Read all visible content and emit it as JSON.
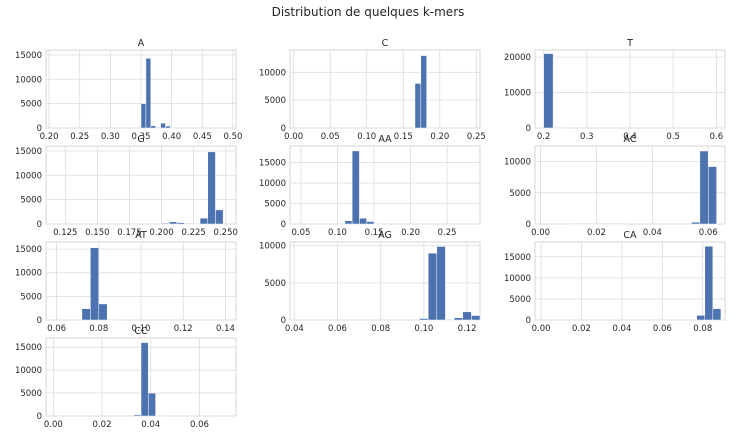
{
  "title": "Distribution de quelques k-mers",
  "colors": {
    "bar": "#4c72b0",
    "grid": "#dcdcdc",
    "background": "#ffffff"
  },
  "chart_data": [
    {
      "type": "bar",
      "title": "A",
      "x_ticks": [
        "0.20",
        "0.25",
        "0.30",
        "0.35",
        "0.40",
        "0.45",
        "0.50"
      ],
      "xlim": [
        0.195,
        0.505
      ],
      "y_ticks": [
        "0",
        "5000",
        "10000",
        "15000"
      ],
      "ylim": [
        0,
        16000
      ],
      "bins": [
        {
          "x0": 0.35,
          "x1": 0.358,
          "count": 5000
        },
        {
          "x0": 0.358,
          "x1": 0.366,
          "count": 14300
        },
        {
          "x0": 0.366,
          "x1": 0.374,
          "count": 450
        },
        {
          "x0": 0.374,
          "x1": 0.382,
          "count": 80
        },
        {
          "x0": 0.382,
          "x1": 0.39,
          "count": 1000
        },
        {
          "x0": 0.39,
          "x1": 0.398,
          "count": 400
        },
        {
          "x0": 0.398,
          "x1": 0.406,
          "count": 60
        }
      ]
    },
    {
      "type": "bar",
      "title": "C",
      "x_ticks": [
        "0.00",
        "0.05",
        "0.10",
        "0.15",
        "0.20",
        "0.25"
      ],
      "xlim": [
        -0.005,
        0.255
      ],
      "y_ticks": [
        "0",
        "5000",
        "10000"
      ],
      "ylim": [
        0,
        14000
      ],
      "bins": [
        {
          "x0": 0.166,
          "x1": 0.174,
          "count": 8000
        },
        {
          "x0": 0.174,
          "x1": 0.182,
          "count": 13000
        },
        {
          "x0": 0.182,
          "x1": 0.19,
          "count": 60
        }
      ]
    },
    {
      "type": "bar",
      "title": "T",
      "x_ticks": [
        "0.2",
        "0.3",
        "0.4",
        "0.5",
        "0.6"
      ],
      "xlim": [
        0.18,
        0.62
      ],
      "y_ticks": [
        "0",
        "10000",
        "20000"
      ],
      "ylim": [
        0,
        22000
      ],
      "bins": [
        {
          "x0": 0.2,
          "x1": 0.222,
          "count": 21000
        },
        {
          "x0": 0.222,
          "x1": 0.244,
          "count": 20
        }
      ]
    },
    {
      "type": "bar",
      "title": "G",
      "x_ticks": [
        "0.125",
        "0.150",
        "0.175",
        "0.200",
        "0.225",
        "0.250"
      ],
      "xlim": [
        0.11,
        0.258
      ],
      "y_ticks": [
        "0",
        "5000",
        "10000",
        "15000"
      ],
      "ylim": [
        0,
        16000
      ],
      "bins": [
        {
          "x0": 0.2,
          "x1": 0.206,
          "count": 180
        },
        {
          "x0": 0.206,
          "x1": 0.212,
          "count": 450
        },
        {
          "x0": 0.212,
          "x1": 0.218,
          "count": 280
        },
        {
          "x0": 0.218,
          "x1": 0.224,
          "count": 80
        },
        {
          "x0": 0.224,
          "x1": 0.23,
          "count": 60
        },
        {
          "x0": 0.23,
          "x1": 0.236,
          "count": 1200
        },
        {
          "x0": 0.236,
          "x1": 0.242,
          "count": 14800
        },
        {
          "x0": 0.242,
          "x1": 0.248,
          "count": 2900
        }
      ]
    },
    {
      "type": "bar",
      "title": "AA",
      "x_ticks": [
        "0.05",
        "0.10",
        "0.15",
        "0.20",
        "0.25"
      ],
      "xlim": [
        0.035,
        0.295
      ],
      "y_ticks": [
        "0",
        "5000",
        "10000",
        "15000"
      ],
      "ylim": [
        0,
        19000
      ],
      "bins": [
        {
          "x0": 0.11,
          "x1": 0.12,
          "count": 800
        },
        {
          "x0": 0.12,
          "x1": 0.13,
          "count": 17800
        },
        {
          "x0": 0.13,
          "x1": 0.14,
          "count": 1400
        },
        {
          "x0": 0.14,
          "x1": 0.15,
          "count": 600
        },
        {
          "x0": 0.15,
          "x1": 0.16,
          "count": 80
        }
      ]
    },
    {
      "type": "bar",
      "title": "AC",
      "x_ticks": [
        "0.00",
        "0.02",
        "0.04",
        "0.06"
      ],
      "xlim": [
        -0.002,
        0.066
      ],
      "y_ticks": [
        "0",
        "5000",
        "10000"
      ],
      "ylim": [
        0,
        12500
      ],
      "bins": [
        {
          "x0": 0.01,
          "x1": 0.03,
          "count": 40
        },
        {
          "x0": 0.054,
          "x1": 0.057,
          "count": 300
        },
        {
          "x0": 0.057,
          "x1": 0.06,
          "count": 11700
        },
        {
          "x0": 0.06,
          "x1": 0.063,
          "count": 9200
        }
      ]
    },
    {
      "type": "bar",
      "title": "AT",
      "x_ticks": [
        "0.06",
        "0.08",
        "0.10",
        "0.12",
        "0.14"
      ],
      "xlim": [
        0.055,
        0.145
      ],
      "y_ticks": [
        "0",
        "5000",
        "10000",
        "15000"
      ],
      "ylim": [
        0,
        16500
      ],
      "bins": [
        {
          "x0": 0.072,
          "x1": 0.076,
          "count": 2400
        },
        {
          "x0": 0.076,
          "x1": 0.08,
          "count": 15300
        },
        {
          "x0": 0.08,
          "x1": 0.084,
          "count": 3400
        },
        {
          "x0": 0.084,
          "x1": 0.088,
          "count": 60
        }
      ]
    },
    {
      "type": "bar",
      "title": "AG",
      "x_ticks": [
        "0.04",
        "0.06",
        "0.08",
        "0.10",
        "0.12"
      ],
      "xlim": [
        0.038,
        0.126
      ],
      "y_ticks": [
        "0",
        "5000",
        "10000"
      ],
      "ylim": [
        0,
        10500
      ],
      "bins": [
        {
          "x0": 0.098,
          "x1": 0.102,
          "count": 200
        },
        {
          "x0": 0.102,
          "x1": 0.106,
          "count": 9000
        },
        {
          "x0": 0.106,
          "x1": 0.11,
          "count": 9900
        },
        {
          "x0": 0.11,
          "x1": 0.114,
          "count": 60
        },
        {
          "x0": 0.114,
          "x1": 0.118,
          "count": 300
        },
        {
          "x0": 0.118,
          "x1": 0.122,
          "count": 1100
        },
        {
          "x0": 0.122,
          "x1": 0.126,
          "count": 600
        }
      ]
    },
    {
      "type": "bar",
      "title": "CA",
      "x_ticks": [
        "0.00",
        "0.02",
        "0.04",
        "0.06",
        "0.08"
      ],
      "xlim": [
        -0.003,
        0.091
      ],
      "y_ticks": [
        "0",
        "5000",
        "10000",
        "15000"
      ],
      "ylim": [
        0,
        18500
      ],
      "bins": [
        {
          "x0": 0.077,
          "x1": 0.081,
          "count": 1100
        },
        {
          "x0": 0.081,
          "x1": 0.085,
          "count": 17500
        },
        {
          "x0": 0.085,
          "x1": 0.089,
          "count": 2700
        }
      ]
    },
    {
      "type": "bar",
      "title": "CC",
      "x_ticks": [
        "0.00",
        "0.02",
        "0.04",
        "0.06"
      ],
      "xlim": [
        -0.003,
        0.075
      ],
      "y_ticks": [
        "0",
        "5000",
        "10000",
        "15000"
      ],
      "ylim": [
        0,
        17000
      ],
      "bins": [
        {
          "x0": 0.033,
          "x1": 0.036,
          "count": 250
        },
        {
          "x0": 0.036,
          "x1": 0.039,
          "count": 16000
        },
        {
          "x0": 0.039,
          "x1": 0.042,
          "count": 5000
        },
        {
          "x0": 0.042,
          "x1": 0.045,
          "count": 50
        }
      ]
    }
  ]
}
